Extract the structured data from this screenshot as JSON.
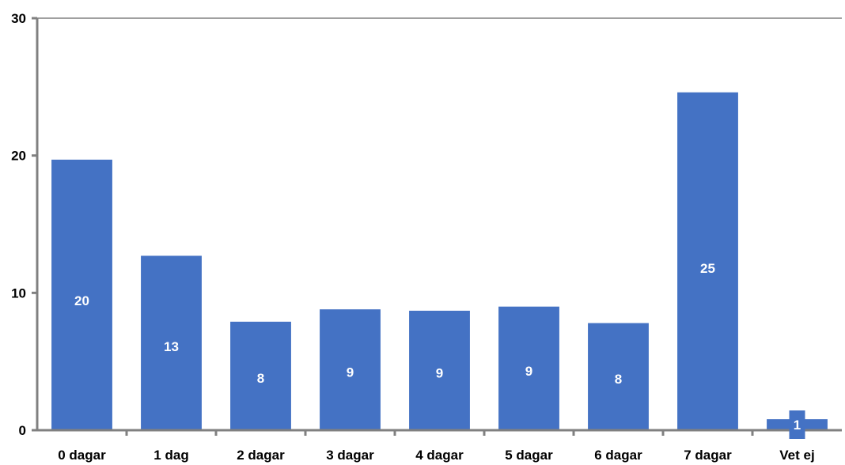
{
  "chart_data": {
    "type": "bar",
    "categories": [
      "0 dagar",
      "1 dag",
      "2 dagar",
      "3 dagar",
      "4 dagar",
      "5 dagar",
      "6 dagar",
      "7 dagar",
      "Vet ej"
    ],
    "values": [
      19.7,
      12.7,
      7.9,
      8.8,
      8.7,
      9.0,
      7.8,
      24.6,
      0.8
    ],
    "data_labels": [
      "20",
      "13",
      "8",
      "9",
      "9",
      "9",
      "8",
      "25",
      "1"
    ],
    "title": "",
    "xlabel": "",
    "ylabel": "",
    "ylim": [
      0,
      30
    ],
    "yticks": [
      0,
      10,
      20,
      30
    ],
    "ytick_labels": [
      "0",
      "10",
      "20",
      "30"
    ],
    "grid": false,
    "bar_color": "#4472C4",
    "label_color": "#ffffff"
  }
}
